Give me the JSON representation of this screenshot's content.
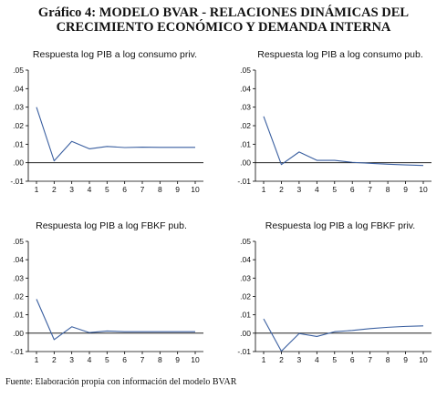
{
  "title": {
    "line1": "Gráfico 4: MODELO BVAR - RELACIONES DINÁMICAS DEL",
    "line2": "CRECIMIENTO ECONÓMICO Y DEMANDA INTERNA"
  },
  "source": "Fuente: Elaboración propia con información del modelo BVAR",
  "colors": {
    "line": "#3a5fa0",
    "zero_line": "#000000",
    "axis": "#000000",
    "text": "#111111"
  },
  "chart_data": [
    {
      "type": "line",
      "title": "Respuesta log PIB a log consumo priv.",
      "x": [
        1,
        2,
        3,
        4,
        5,
        6,
        7,
        8,
        9,
        10
      ],
      "y": [
        0.03,
        0.001,
        0.0115,
        0.0075,
        0.0088,
        0.0082,
        0.0084,
        0.0083,
        0.0083,
        0.0083
      ],
      "ylim": [
        -0.01,
        0.05
      ],
      "yticks": [
        ".05",
        ".04",
        ".03",
        ".02",
        ".01",
        ".00",
        "-.01"
      ],
      "xticks": [
        "1",
        "2",
        "3",
        "4",
        "5",
        "6",
        "7",
        "8",
        "9",
        "10"
      ],
      "zero_line": true
    },
    {
      "type": "line",
      "title": "Respuesta log PIB a log consumo pub.",
      "x": [
        1,
        2,
        3,
        4,
        5,
        6,
        7,
        8,
        9,
        10
      ],
      "y": [
        0.025,
        -0.001,
        0.0058,
        0.0013,
        0.0013,
        0.0002,
        -0.0003,
        -0.0008,
        -0.0012,
        -0.0015
      ],
      "ylim": [
        -0.01,
        0.05
      ],
      "yticks": [
        ".05",
        ".04",
        ".03",
        ".02",
        ".01",
        ".00",
        "-.01"
      ],
      "xticks": [
        "1",
        "2",
        "3",
        "4",
        "5",
        "6",
        "7",
        "8",
        "9",
        "10"
      ],
      "zero_line": true
    },
    {
      "type": "line",
      "title": "Respuesta log PIB a log FBKF pub.",
      "x": [
        1,
        2,
        3,
        4,
        5,
        6,
        7,
        8,
        9,
        10
      ],
      "y": [
        0.0185,
        -0.0035,
        0.0035,
        0.0003,
        0.0012,
        0.0008,
        0.0008,
        0.0008,
        0.0008,
        0.0008
      ],
      "ylim": [
        -0.01,
        0.05
      ],
      "yticks": [
        ".05",
        ".04",
        ".03",
        ".02",
        ".01",
        ".00",
        "-.01"
      ],
      "xticks": [
        "1",
        "2",
        "3",
        "4",
        "5",
        "6",
        "7",
        "8",
        "9",
        "10"
      ],
      "zero_line": true
    },
    {
      "type": "line",
      "title": "Respuesta log PIB a log FBKF priv.",
      "x": [
        1,
        2,
        3,
        4,
        5,
        6,
        7,
        8,
        9,
        10
      ],
      "y": [
        0.0078,
        -0.0098,
        -0.0002,
        -0.0018,
        0.0008,
        0.0015,
        0.0025,
        0.0032,
        0.0037,
        0.004
      ],
      "ylim": [
        -0.01,
        0.05
      ],
      "yticks": [
        ".05",
        ".04",
        ".03",
        ".02",
        ".01",
        ".00",
        "-.01"
      ],
      "xticks": [
        "1",
        "2",
        "3",
        "4",
        "5",
        "6",
        "7",
        "8",
        "9",
        "10"
      ],
      "zero_line": true
    }
  ]
}
